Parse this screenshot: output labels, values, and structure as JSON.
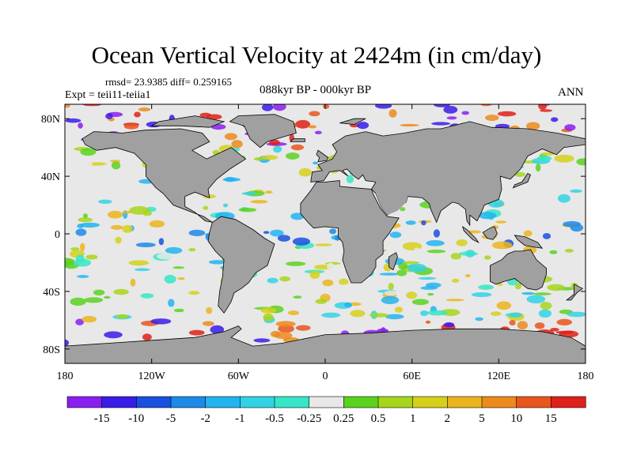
{
  "title": "Ocean Vertical Velocity at 2424m (in cm/day)",
  "stats": "rmsd= 23.9385 diff= 0.259165",
  "experiment": "Expt = teii11-teiia1",
  "period": "088kyr BP - 000kyr BP",
  "season": "ANN",
  "lat_ticks": [
    "80N",
    "40N",
    "0",
    "40S",
    "80S"
  ],
  "lon_ticks": [
    "180",
    "120W",
    "60W",
    "0",
    "60E",
    "120E",
    "180"
  ],
  "colorbar": {
    "labels": [
      "-15",
      "-10",
      "-5",
      "-2",
      "-1",
      "-0.5",
      "-0.25",
      "0.25",
      "0.5",
      "1",
      "2",
      "5",
      "10",
      "15"
    ],
    "colors": [
      "#8a1ef0",
      "#3a1ce8",
      "#1a50e0",
      "#1c8ae8",
      "#22b4f0",
      "#32d2e6",
      "#36e6c6",
      "#e8e8e8",
      "#5ad21e",
      "#a6d61a",
      "#d6d01a",
      "#ecb41c",
      "#ec8a1c",
      "#e8561c",
      "#e0201a"
    ]
  },
  "colors": {
    "land": "#a0a0a0",
    "coast": "#000000"
  }
}
